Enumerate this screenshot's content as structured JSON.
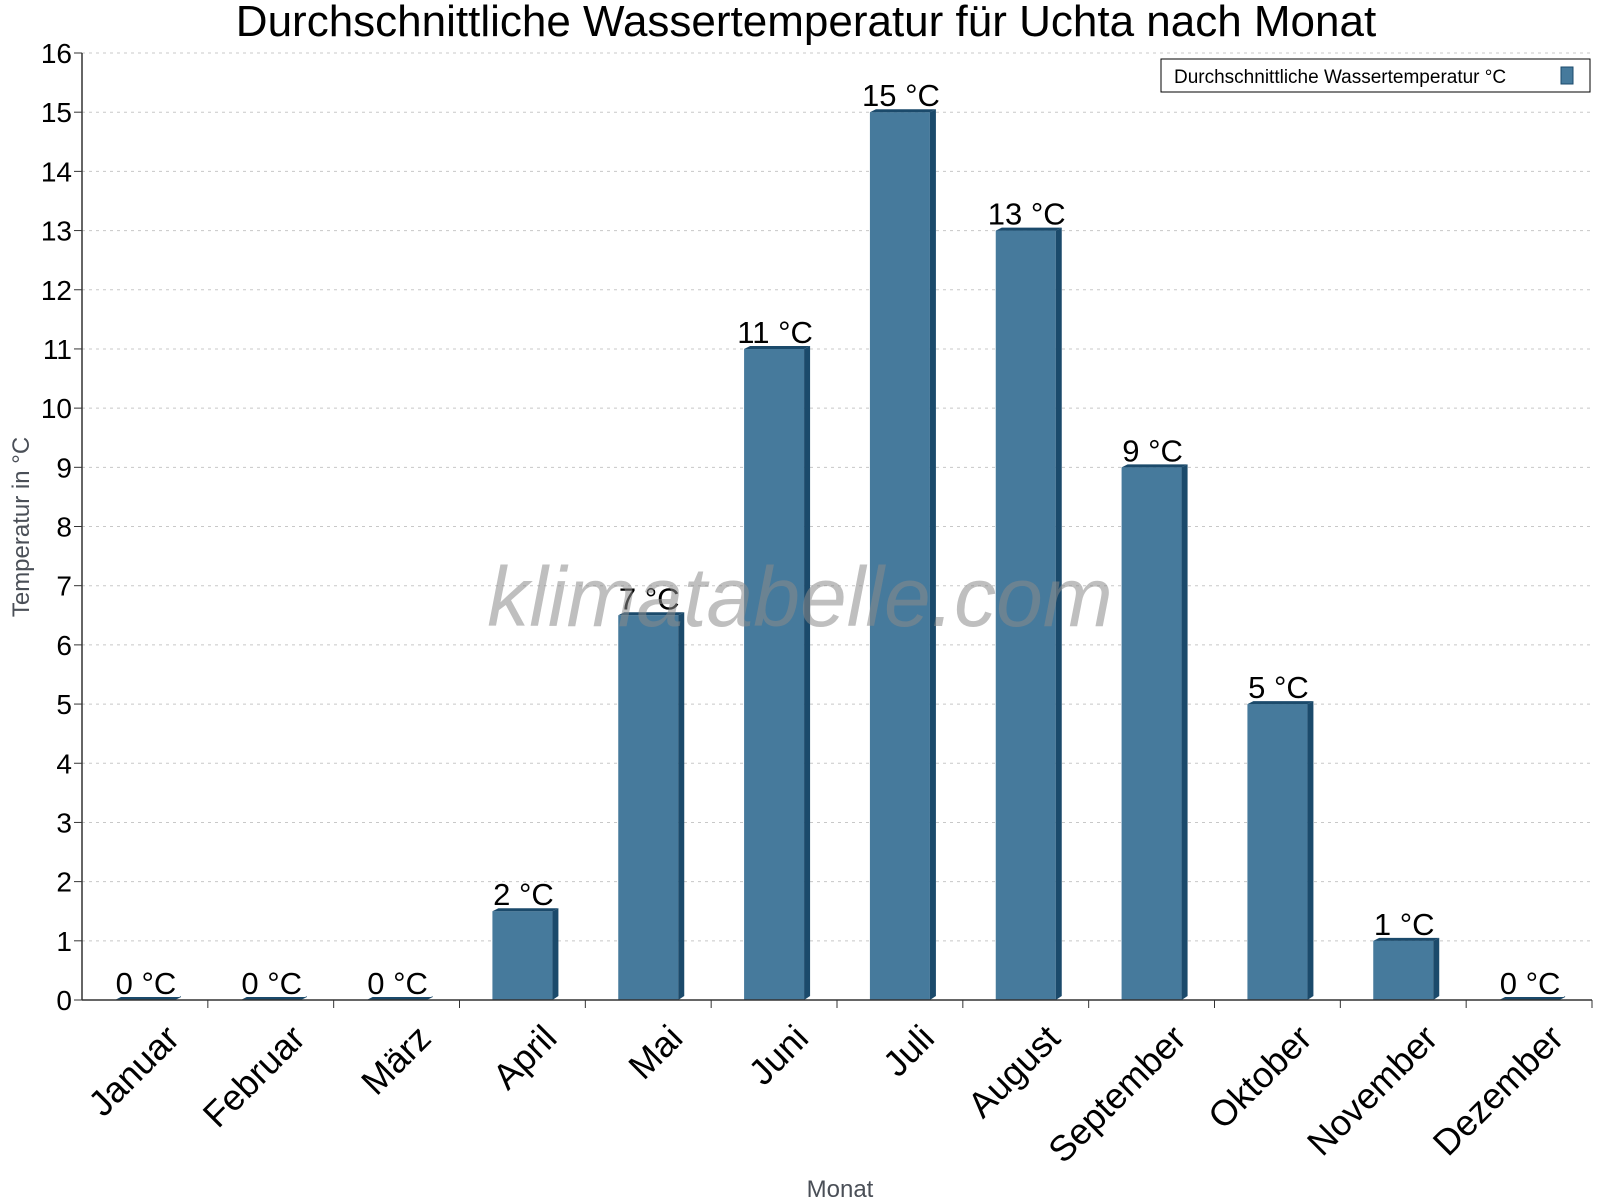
{
  "watermark": "klimatabelle.com",
  "colors": {
    "bar_face": "#467a9c",
    "bar_side": "#1b4a6b",
    "grid": "#c8c8c8",
    "axis": "#333333"
  },
  "chart_data": {
    "type": "bar",
    "title": "Durchschnittliche Wassertemperatur für Uchta nach Monat",
    "xlabel": "Monat",
    "ylabel": "Temperatur in °C",
    "ylim": [
      0,
      16
    ],
    "yticks": [
      "0",
      "1",
      "2",
      "3",
      "4",
      "5",
      "6",
      "7",
      "8",
      "9",
      "10",
      "11",
      "12",
      "13",
      "14",
      "15",
      "16"
    ],
    "grid": true,
    "legend_position": "top-right",
    "categories": [
      "Januar",
      "Februar",
      "März",
      "April",
      "Mai",
      "Juni",
      "Juli",
      "August",
      "September",
      "Oktober",
      "November",
      "Dezember"
    ],
    "series": [
      {
        "name": "Durchschnittliche Wassertemperatur °C",
        "values": [
          0,
          0,
          0,
          1.5,
          6.5,
          11,
          15,
          13,
          9,
          5,
          1,
          0
        ],
        "labels": [
          "0 °C",
          "0 °C",
          "0 °C",
          "2 °C",
          "7 °C",
          "11 °C",
          "15 °C",
          "13 °C",
          "9 °C",
          "5 °C",
          "1 °C",
          "0 °C"
        ]
      }
    ]
  }
}
